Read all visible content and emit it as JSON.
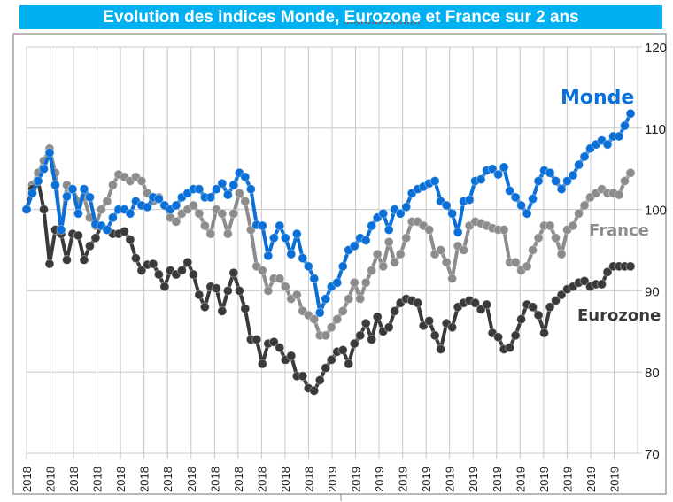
{
  "chart_data": {
    "type": "line",
    "title_parts": [
      "Evolution des indices Monde, ",
      "Eurozone",
      " et France sur 2 ans"
    ],
    "ylim": [
      70,
      120
    ],
    "yticks": [
      70,
      80,
      90,
      100,
      110,
      120
    ],
    "y_axis_side": "right",
    "grid": true,
    "xtick_labels": [
      "2018",
      "2018",
      "2018",
      "2018",
      "2018",
      "2018",
      "2018",
      "2018",
      "2018",
      "2018",
      "2018",
      "2018",
      "2018",
      "2019",
      "2019",
      "2019",
      "2019",
      "2019",
      "2019",
      "2019",
      "2019",
      "2019",
      "2019",
      "2019",
      "2019",
      "2019"
    ],
    "series": [
      {
        "name": "Monde",
        "color": "#0a6fd6",
        "values": [
          100,
          102,
          103.5,
          105,
          107,
          103,
          97.5,
          101.6,
          102.5,
          99.5,
          102.5,
          101.5,
          98.2,
          98,
          97.5,
          99,
          100,
          100,
          99.5,
          101,
          100.5,
          100.3,
          101.5,
          101.3,
          100.5,
          100,
          100.5,
          101.5,
          102,
          102.5,
          102.5,
          101.5,
          101.5,
          102.5,
          103.2,
          101.8,
          103,
          104.5,
          104,
          102.5,
          98.1,
          98,
          94.3,
          96.5,
          98,
          96.5,
          94.5,
          97,
          94,
          93,
          91.5,
          87.3,
          89,
          90.5,
          91,
          93,
          95,
          95.5,
          96.5,
          96.2,
          98,
          99,
          99.5,
          97.5,
          100,
          99.5,
          100.3,
          102,
          102.5,
          102.8,
          103.2,
          103.5,
          101,
          100.5,
          99.5,
          97.2,
          101,
          101.2,
          103.5,
          103.7,
          104.8,
          105,
          104.3,
          105.2,
          102.3,
          101.5,
          100.5,
          99.5,
          101.3,
          103.5,
          104.8,
          104.5,
          103.5,
          102.5,
          103.5,
          104.2,
          105.5,
          106.5,
          107.5,
          108,
          108.5,
          108,
          109,
          109,
          110.3,
          111.8
        ]
      },
      {
        "name": "France",
        "color": "#8c8c8c",
        "values": [
          100,
          103,
          104.5,
          106,
          107.5,
          104.5,
          97,
          103,
          102.5,
          101,
          101.5,
          99,
          98,
          100,
          101,
          103,
          104.3,
          104,
          103.5,
          104,
          103.5,
          102,
          101,
          101.5,
          100.5,
          99,
          98.5,
          99.5,
          100,
          100.5,
          99.5,
          98,
          97,
          100,
          99.5,
          97,
          99.5,
          102,
          101,
          97.5,
          93,
          92.5,
          90,
          91.5,
          91.5,
          90.5,
          89,
          89.5,
          87.5,
          87,
          86.5,
          84.5,
          84.5,
          85.5,
          86.5,
          87.5,
          89,
          91,
          89,
          91,
          92.5,
          94.5,
          93,
          96,
          93.5,
          94.5,
          96.5,
          98.5,
          98.5,
          98,
          97.5,
          94.5,
          95,
          93.5,
          91.5,
          95.5,
          95,
          98,
          98.5,
          98.3,
          98,
          97.7,
          97.5,
          97.5,
          93.5,
          93.5,
          92.5,
          93,
          95,
          96.5,
          98,
          98,
          96.5,
          94.5,
          97.5,
          98,
          99.5,
          100.5,
          101.5,
          102,
          102.5,
          102,
          102,
          101.8,
          103.5,
          104.5
        ]
      },
      {
        "name": "Eurozone",
        "color": "#3a3a3a",
        "values": [
          100,
          102.5,
          103.5,
          100,
          93.3,
          97.5,
          97,
          93.8,
          97,
          96.8,
          93.8,
          95.5,
          96.5,
          98,
          97.5,
          97,
          97,
          97.3,
          96.3,
          94,
          92.5,
          93.2,
          93.3,
          92,
          90.5,
          92.5,
          92,
          92.5,
          93.5,
          92,
          89.5,
          88,
          90.5,
          90.3,
          87.5,
          90,
          92.2,
          90,
          87.8,
          84,
          84,
          81,
          83.5,
          83.7,
          83,
          81.5,
          82,
          79.5,
          79.5,
          78,
          77.7,
          79,
          80.5,
          81.5,
          82.5,
          82.7,
          81,
          83.5,
          84.5,
          86,
          84,
          86.8,
          85,
          85.5,
          87.5,
          88.5,
          89,
          88.8,
          88.5,
          85.7,
          86.3,
          84.5,
          82.8,
          86,
          85.5,
          88,
          88.5,
          88.8,
          88.5,
          87.7,
          88.3,
          84.8,
          84.3,
          82.8,
          83,
          84.5,
          86.5,
          88.3,
          88,
          87,
          84.8,
          88,
          88.8,
          89.5,
          90.2,
          90.5,
          91,
          91.2,
          90.5,
          90.8,
          90.8,
          92.3,
          93,
          93,
          93,
          93
        ]
      }
    ]
  }
}
